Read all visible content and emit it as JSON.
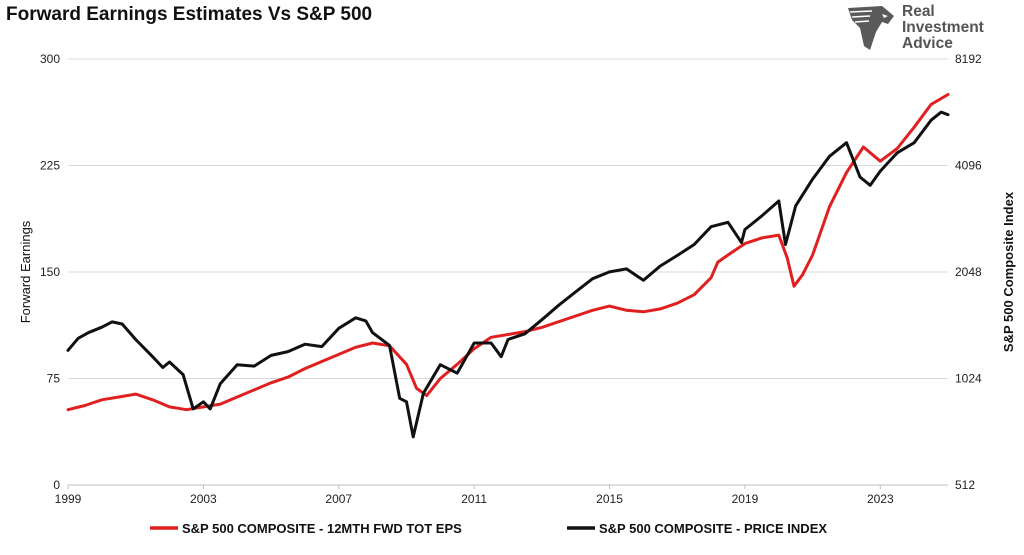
{
  "chart_data": {
    "type": "line",
    "title": "Forward Earnings Estimates Vs S&P 500",
    "ylabel": "Forward Earnings",
    "y2label": "S&P 500  Composite Index",
    "xlim": [
      1999,
      2025
    ],
    "ylim": [
      0,
      300
    ],
    "y2lim_log2": [
      512,
      8192
    ],
    "x_ticks": [
      1999,
      2003,
      2007,
      2011,
      2015,
      2019,
      2023
    ],
    "x_tick_labels": [
      "1999",
      "2003",
      "2007",
      "2011",
      "2015",
      "2019",
      "2023"
    ],
    "y_ticks": [
      0,
      75,
      150,
      225,
      300
    ],
    "y_tick_labels": [
      "0",
      "75",
      "150",
      "225",
      "300"
    ],
    "y2_ticks": [
      512,
      1024,
      2048,
      4096,
      8192
    ],
    "y2_tick_labels": [
      "512",
      "1024",
      "2048",
      "4096",
      "8192"
    ],
    "grid": true,
    "legend_position": "bottom",
    "series": [
      {
        "name": "S&P 500 COMPOSITE - 12MTH FWD TOT EPS",
        "axis": "left",
        "color": "#e02020",
        "points": [
          [
            1999.0,
            53
          ],
          [
            1999.5,
            56
          ],
          [
            2000.0,
            60
          ],
          [
            2000.5,
            62
          ],
          [
            2001.0,
            64
          ],
          [
            2001.5,
            60
          ],
          [
            2002.0,
            55
          ],
          [
            2002.5,
            53
          ],
          [
            2003.0,
            55
          ],
          [
            2003.5,
            57
          ],
          [
            2004.0,
            62
          ],
          [
            2004.5,
            67
          ],
          [
            2005.0,
            72
          ],
          [
            2005.5,
            76
          ],
          [
            2006.0,
            82
          ],
          [
            2006.5,
            87
          ],
          [
            2007.0,
            92
          ],
          [
            2007.5,
            97
          ],
          [
            2008.0,
            100
          ],
          [
            2008.5,
            98
          ],
          [
            2009.0,
            85
          ],
          [
            2009.3,
            68
          ],
          [
            2009.6,
            63
          ],
          [
            2010.0,
            75
          ],
          [
            2010.5,
            85
          ],
          [
            2011.0,
            96
          ],
          [
            2011.5,
            104
          ],
          [
            2012.0,
            106
          ],
          [
            2012.5,
            108
          ],
          [
            2013.0,
            111
          ],
          [
            2013.5,
            115
          ],
          [
            2014.0,
            119
          ],
          [
            2014.5,
            123
          ],
          [
            2015.0,
            126
          ],
          [
            2015.5,
            123
          ],
          [
            2016.0,
            122
          ],
          [
            2016.5,
            124
          ],
          [
            2017.0,
            128
          ],
          [
            2017.5,
            134
          ],
          [
            2018.0,
            146
          ],
          [
            2018.2,
            157
          ],
          [
            2018.5,
            162
          ],
          [
            2019.0,
            170
          ],
          [
            2019.5,
            174
          ],
          [
            2020.0,
            176
          ],
          [
            2020.25,
            160
          ],
          [
            2020.45,
            140
          ],
          [
            2020.7,
            148
          ],
          [
            2021.0,
            162
          ],
          [
            2021.5,
            196
          ],
          [
            2022.0,
            220
          ],
          [
            2022.5,
            238
          ],
          [
            2023.0,
            228
          ],
          [
            2023.5,
            237
          ],
          [
            2024.0,
            252
          ],
          [
            2024.5,
            268
          ],
          [
            2025.0,
            275
          ]
        ]
      },
      {
        "name": "S&P 500 COMPOSITE - PRICE INDEX",
        "axis": "right",
        "color": "#111111",
        "points": [
          [
            1999.0,
            1230
          ],
          [
            1999.3,
            1330
          ],
          [
            1999.6,
            1380
          ],
          [
            2000.0,
            1430
          ],
          [
            2000.3,
            1480
          ],
          [
            2000.6,
            1460
          ],
          [
            2001.0,
            1320
          ],
          [
            2001.5,
            1180
          ],
          [
            2001.8,
            1100
          ],
          [
            2002.0,
            1140
          ],
          [
            2002.4,
            1050
          ],
          [
            2002.7,
            840
          ],
          [
            2003.0,
            880
          ],
          [
            2003.2,
            840
          ],
          [
            2003.5,
            990
          ],
          [
            2004.0,
            1120
          ],
          [
            2004.5,
            1110
          ],
          [
            2005.0,
            1190
          ],
          [
            2005.5,
            1220
          ],
          [
            2006.0,
            1280
          ],
          [
            2006.5,
            1260
          ],
          [
            2007.0,
            1420
          ],
          [
            2007.5,
            1520
          ],
          [
            2007.8,
            1490
          ],
          [
            2008.0,
            1380
          ],
          [
            2008.5,
            1270
          ],
          [
            2008.8,
            900
          ],
          [
            2009.0,
            880
          ],
          [
            2009.2,
            700
          ],
          [
            2009.5,
            930
          ],
          [
            2010.0,
            1120
          ],
          [
            2010.5,
            1060
          ],
          [
            2011.0,
            1290
          ],
          [
            2011.5,
            1290
          ],
          [
            2011.8,
            1180
          ],
          [
            2012.0,
            1320
          ],
          [
            2012.5,
            1370
          ],
          [
            2013.0,
            1500
          ],
          [
            2013.5,
            1650
          ],
          [
            2014.0,
            1800
          ],
          [
            2014.5,
            1960
          ],
          [
            2015.0,
            2050
          ],
          [
            2015.5,
            2090
          ],
          [
            2016.0,
            1940
          ],
          [
            2016.5,
            2130
          ],
          [
            2017.0,
            2280
          ],
          [
            2017.5,
            2450
          ],
          [
            2018.0,
            2750
          ],
          [
            2018.5,
            2830
          ],
          [
            2018.9,
            2480
          ],
          [
            2019.0,
            2700
          ],
          [
            2019.5,
            2950
          ],
          [
            2020.0,
            3250
          ],
          [
            2020.2,
            2450
          ],
          [
            2020.5,
            3150
          ],
          [
            2021.0,
            3750
          ],
          [
            2021.5,
            4350
          ],
          [
            2022.0,
            4750
          ],
          [
            2022.4,
            3800
          ],
          [
            2022.7,
            3600
          ],
          [
            2023.0,
            3950
          ],
          [
            2023.5,
            4450
          ],
          [
            2024.0,
            4750
          ],
          [
            2024.5,
            5500
          ],
          [
            2024.8,
            5800
          ],
          [
            2025.0,
            5700
          ]
        ]
      }
    ]
  },
  "logo": {
    "line1": "Real",
    "line2": "Investment",
    "line3": "Advice"
  }
}
